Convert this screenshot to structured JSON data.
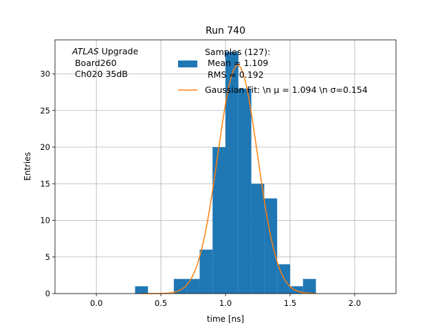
{
  "chart_data": {
    "type": "bar",
    "title": "Run 740",
    "xlabel": "time [ns]",
    "ylabel": "Entries",
    "xlim": [
      -0.32,
      2.32
    ],
    "ylim": [
      0,
      34.65
    ],
    "xticks": [
      0.0,
      0.5,
      1.0,
      1.5,
      2.0
    ],
    "xtick_labels": [
      "0.0",
      "0.5",
      "1.0",
      "1.5",
      "2.0"
    ],
    "yticks": [
      0,
      5,
      10,
      15,
      20,
      25,
      30
    ],
    "ytick_labels": [
      "0",
      "5",
      "10",
      "15",
      "20",
      "25",
      "30"
    ],
    "grid": true,
    "legend_position": "top-right",
    "annotation": {
      "italic": "ATLAS",
      "line1_rest": " Upgrade",
      "line2": " Board260",
      "line3": " Ch020 35dB"
    },
    "histogram": {
      "name_lines": [
        "Samples (127):",
        " Mean = 1.109",
        " RMS = 0.192"
      ],
      "color": "#1f77b4",
      "bins": [
        {
          "x0": 0.3,
          "x1": 0.4,
          "count": 1
        },
        {
          "x0": 0.6,
          "x1": 0.7,
          "count": 2
        },
        {
          "x0": 0.7,
          "x1": 0.8,
          "count": 2
        },
        {
          "x0": 0.8,
          "x1": 0.9,
          "count": 6
        },
        {
          "x0": 0.9,
          "x1": 1.0,
          "count": 20
        },
        {
          "x0": 1.0,
          "x1": 1.1,
          "count": 33
        },
        {
          "x0": 1.1,
          "x1": 1.2,
          "count": 28
        },
        {
          "x0": 1.2,
          "x1": 1.3,
          "count": 15
        },
        {
          "x0": 1.3,
          "x1": 1.4,
          "count": 13
        },
        {
          "x0": 1.4,
          "x1": 1.5,
          "count": 4
        },
        {
          "x0": 1.5,
          "x1": 1.6,
          "count": 1
        },
        {
          "x0": 1.6,
          "x1": 1.7,
          "count": 2
        }
      ]
    },
    "fit": {
      "name": "Gaussian Fit: \\n μ = 1.094 \\n σ=0.154",
      "color": "#ff7f0e",
      "mu": 1.094,
      "sigma": 0.154,
      "amplitude": 31.2,
      "x_range": [
        0.35,
        1.7
      ]
    }
  }
}
